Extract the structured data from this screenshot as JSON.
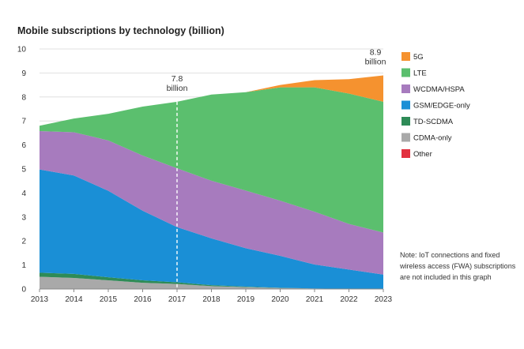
{
  "chart_data": {
    "type": "area",
    "stacked": true,
    "title": "Mobile subscriptions by technology (billion)",
    "xlabel": "",
    "ylabel": "",
    "x": [
      "2013",
      "2014",
      "2015",
      "2016",
      "2017",
      "2018",
      "2019",
      "2020",
      "2021",
      "2022",
      "2023"
    ],
    "ylim": [
      0,
      10
    ],
    "yticks": [
      "0",
      "1",
      "2",
      "3",
      "4",
      "5",
      "6",
      "7",
      "8",
      "9",
      "10"
    ],
    "grid": true,
    "series": [
      {
        "name": "Other",
        "color": "#e2303f",
        "values": [
          0.01,
          0.01,
          0.01,
          0.01,
          0.01,
          0.0,
          0.0,
          0.0,
          0.0,
          0.0,
          0.0
        ]
      },
      {
        "name": "CDMA-only",
        "color": "#a9a9a9",
        "values": [
          0.5,
          0.45,
          0.35,
          0.25,
          0.2,
          0.12,
          0.08,
          0.04,
          0.02,
          0.01,
          0.0
        ]
      },
      {
        "name": "TD-SCDMA",
        "color": "#2e8b57",
        "values": [
          0.17,
          0.17,
          0.13,
          0.1,
          0.07,
          0.04,
          0.02,
          0.01,
          0.0,
          0.0,
          0.0
        ]
      },
      {
        "name": "GSM/EDGE-only",
        "color": "#1a8fd6",
        "values": [
          4.3,
          4.1,
          3.6,
          2.9,
          2.3,
          1.95,
          1.6,
          1.33,
          1.0,
          0.8,
          0.6
        ]
      },
      {
        "name": "WCDMA/HSPA",
        "color": "#a77bbe",
        "values": [
          1.6,
          1.8,
          2.1,
          2.3,
          2.45,
          2.4,
          2.4,
          2.3,
          2.2,
          1.9,
          1.75
        ]
      },
      {
        "name": "LTE",
        "color": "#5bbf6e",
        "values": [
          0.22,
          0.57,
          1.11,
          2.04,
          2.77,
          3.59,
          4.1,
          4.72,
          5.18,
          5.43,
          5.45
        ]
      },
      {
        "name": "5G",
        "color": "#f5922f",
        "values": [
          0.0,
          0.0,
          0.0,
          0.0,
          0.0,
          0.0,
          0.0,
          0.1,
          0.3,
          0.6,
          1.1
        ]
      }
    ],
    "annotations": [
      {
        "x": "2017",
        "value": 7.8,
        "lines": [
          "7.8",
          "billion"
        ],
        "dashed_marker": true
      },
      {
        "x": "2023",
        "value": 8.9,
        "lines": [
          "8.9",
          "billion"
        ],
        "dashed_marker": false
      }
    ],
    "legend": {
      "placement": "right",
      "order": [
        "5G",
        "LTE",
        "WCDMA/HSPA",
        "GSM/EDGE-only",
        "TD-SCDMA",
        "CDMA-only",
        "Other"
      ]
    },
    "note": [
      "Note: IoT connections and fixed",
      "wireless access (FWA) subscriptions",
      "are not included in this graph"
    ]
  }
}
